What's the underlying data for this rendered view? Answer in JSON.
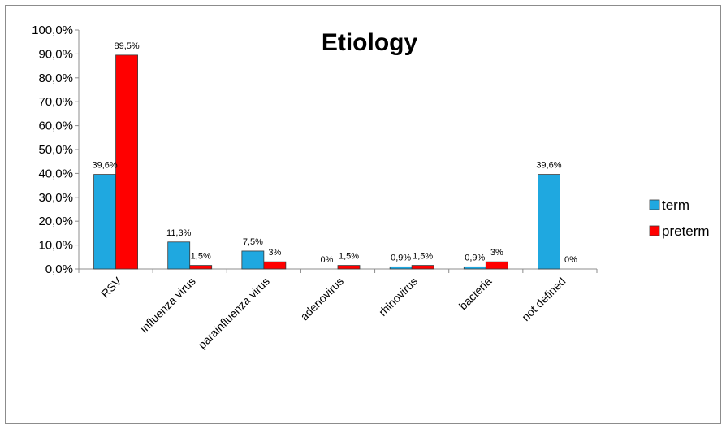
{
  "chart_data": {
    "type": "bar",
    "title": "Etiology",
    "categories": [
      "RSV",
      "influenza virus",
      "parainfluenza virus",
      "adenovirus",
      "rhinovirus",
      "bacteria",
      "not defined"
    ],
    "series": [
      {
        "name": "term",
        "color": "#1fa8e0",
        "values": [
          39.6,
          11.3,
          7.5,
          0,
          0.9,
          0.9,
          39.6
        ],
        "labels": [
          "39,6%",
          "11,3%",
          "7,5%",
          "0%",
          "0,9%",
          "0,9%",
          "39,6%"
        ]
      },
      {
        "name": "preterm",
        "color": "#ff0000",
        "values": [
          89.5,
          1.5,
          3,
          1.5,
          1.5,
          3,
          0
        ],
        "labels": [
          "89,5%",
          "1,5%",
          "3%",
          "1,5%",
          "1,5%",
          "3%",
          "0%"
        ]
      }
    ],
    "ylim": [
      0,
      100
    ],
    "yticks": [
      "0,0%",
      "10,0%",
      "20,0%",
      "30,0%",
      "40,0%",
      "50,0%",
      "60,0%",
      "70,0%",
      "80,0%",
      "90,0%",
      "100,0%"
    ],
    "legend_position": "right",
    "grid": false
  }
}
